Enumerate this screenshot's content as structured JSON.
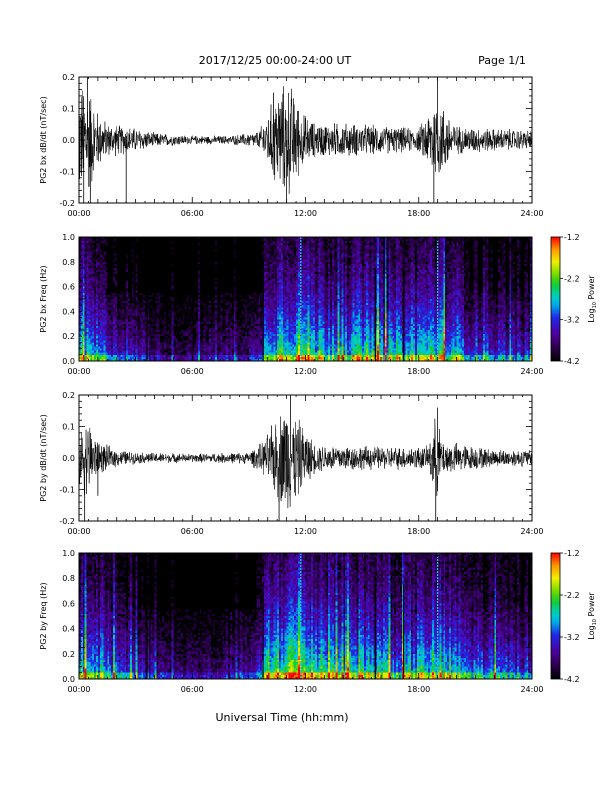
{
  "header": {
    "title": "2017/12/25   00:00-24:00 UT",
    "page": "Page 1/1"
  },
  "footer": {
    "xlabel": "Universal Time (hh:mm)"
  },
  "colorbar": {
    "label": "Log",
    "label_sub": "10",
    "label_rest": " Power",
    "ticks": [
      "-1.2",
      "-2.2",
      "-3.2",
      "-4.2"
    ],
    "tick_values": [
      -1.2,
      -2.2,
      -3.2,
      -4.2
    ],
    "range": [
      -4.2,
      -1.2
    ]
  },
  "chart_data": [
    {
      "type": "line",
      "ylabel": "PG2 bx dB/dt (nT/sec)",
      "xlim": [
        0,
        24
      ],
      "ylim": [
        -0.2,
        0.2
      ],
      "x_ticks": [
        "00:00",
        "06:00",
        "12:00",
        "18:00",
        "24:00"
      ],
      "y_ticks": [
        "0.2",
        "0.1",
        "0.0",
        "-0.1",
        "-0.2"
      ],
      "y_tick_values": [
        0.2,
        0.1,
        0.0,
        -0.1,
        -0.2
      ],
      "envelope": [
        {
          "x": 0.0,
          "a": 0.2
        },
        {
          "x": 0.5,
          "a": 0.2
        },
        {
          "x": 1.0,
          "a": 0.1
        },
        {
          "x": 1.5,
          "a": 0.06
        },
        {
          "x": 2.5,
          "a": 0.05
        },
        {
          "x": 3.2,
          "a": 0.04
        },
        {
          "x": 4.0,
          "a": 0.025
        },
        {
          "x": 6.0,
          "a": 0.015
        },
        {
          "x": 8.0,
          "a": 0.015
        },
        {
          "x": 9.5,
          "a": 0.03
        },
        {
          "x": 9.9,
          "a": 0.08
        },
        {
          "x": 10.5,
          "a": 0.18
        },
        {
          "x": 11.2,
          "a": 0.2
        },
        {
          "x": 11.8,
          "a": 0.1
        },
        {
          "x": 12.5,
          "a": 0.06
        },
        {
          "x": 14.0,
          "a": 0.06
        },
        {
          "x": 16.0,
          "a": 0.05
        },
        {
          "x": 18.0,
          "a": 0.04
        },
        {
          "x": 18.9,
          "a": 0.15
        },
        {
          "x": 19.3,
          "a": 0.12
        },
        {
          "x": 20.0,
          "a": 0.05
        },
        {
          "x": 22.0,
          "a": 0.04
        },
        {
          "x": 24.0,
          "a": 0.035
        }
      ],
      "spikes": [
        {
          "x": 0.25,
          "v": -0.2
        },
        {
          "x": 0.45,
          "v": 0.2
        },
        {
          "x": 0.6,
          "v": -0.2
        },
        {
          "x": 2.5,
          "v": -0.2
        },
        {
          "x": 10.3,
          "v": 0.15
        },
        {
          "x": 11.0,
          "v": -0.2
        },
        {
          "x": 18.8,
          "v": -0.2
        },
        {
          "x": 19.0,
          "v": 0.2
        }
      ]
    },
    {
      "type": "heatmap",
      "ylabel": "PG2 bx Freq (Hz)",
      "xlim": [
        0,
        24
      ],
      "ylim": [
        0.0,
        1.0
      ],
      "x_ticks": [
        "00:00",
        "06:00",
        "12:00",
        "18:00",
        "24:00"
      ],
      "y_ticks": [
        "1.0",
        "0.8",
        "0.6",
        "0.4",
        "0.2",
        "0.0"
      ],
      "y_tick_values": [
        1.0,
        0.8,
        0.6,
        0.4,
        0.2,
        0.0
      ],
      "value_range": [
        -4.2,
        -1.2
      ],
      "activity": [
        {
          "x": 0.0,
          "v": 0.8
        },
        {
          "x": 1.5,
          "v": 0.6
        },
        {
          "x": 3.0,
          "v": 0.45
        },
        {
          "x": 5.0,
          "v": 0.3
        },
        {
          "x": 7.0,
          "v": 0.35
        },
        {
          "x": 9.5,
          "v": 0.4
        },
        {
          "x": 10.0,
          "v": 0.85
        },
        {
          "x": 11.5,
          "v": 0.95
        },
        {
          "x": 13.0,
          "v": 0.8
        },
        {
          "x": 15.0,
          "v": 0.8
        },
        {
          "x": 17.0,
          "v": 0.75
        },
        {
          "x": 19.0,
          "v": 0.85
        },
        {
          "x": 21.0,
          "v": 0.6
        },
        {
          "x": 24.0,
          "v": 0.5
        }
      ],
      "gap_lines_hours": [
        3.6,
        9.75,
        15.7,
        17.2
      ],
      "bright_lines_hours": [
        11.75,
        19.0
      ]
    },
    {
      "type": "line",
      "ylabel": "PG2 by dB/dt (nT/sec)",
      "xlim": [
        0,
        24
      ],
      "ylim": [
        -0.2,
        0.2
      ],
      "x_ticks": [
        "00:00",
        "06:00",
        "12:00",
        "18:00",
        "24:00"
      ],
      "y_ticks": [
        "0.2",
        "0.1",
        "0.0",
        "-0.1",
        "-0.2"
      ],
      "y_tick_values": [
        0.2,
        0.1,
        0.0,
        -0.1,
        -0.2
      ],
      "envelope": [
        {
          "x": 0.0,
          "a": 0.1
        },
        {
          "x": 0.5,
          "a": 0.14
        },
        {
          "x": 1.0,
          "a": 0.06
        },
        {
          "x": 2.0,
          "a": 0.03
        },
        {
          "x": 3.0,
          "a": 0.02
        },
        {
          "x": 6.0,
          "a": 0.015
        },
        {
          "x": 9.0,
          "a": 0.02
        },
        {
          "x": 9.8,
          "a": 0.06
        },
        {
          "x": 10.5,
          "a": 0.15
        },
        {
          "x": 11.0,
          "a": 0.2
        },
        {
          "x": 11.8,
          "a": 0.12
        },
        {
          "x": 12.5,
          "a": 0.05
        },
        {
          "x": 16.0,
          "a": 0.04
        },
        {
          "x": 18.5,
          "a": 0.04
        },
        {
          "x": 18.9,
          "a": 0.15
        },
        {
          "x": 19.3,
          "a": 0.06
        },
        {
          "x": 22.0,
          "a": 0.03
        },
        {
          "x": 24.0,
          "a": 0.03
        }
      ],
      "spikes": [
        {
          "x": 0.3,
          "v": -0.2
        },
        {
          "x": 1.0,
          "v": -0.12
        },
        {
          "x": 11.2,
          "v": 0.2
        },
        {
          "x": 10.6,
          "v": -0.2
        },
        {
          "x": 18.9,
          "v": -0.2
        },
        {
          "x": 19.0,
          "v": 0.16
        }
      ]
    },
    {
      "type": "heatmap",
      "ylabel": "PG2 by Freq (Hz)",
      "xlim": [
        0,
        24
      ],
      "ylim": [
        0.0,
        1.0
      ],
      "x_ticks": [
        "00:00",
        "06:00",
        "12:00",
        "18:00",
        "24:00"
      ],
      "y_ticks": [
        "1.0",
        "0.8",
        "0.6",
        "0.4",
        "0.2",
        "0.0"
      ],
      "y_tick_values": [
        1.0,
        0.8,
        0.6,
        0.4,
        0.2,
        0.0
      ],
      "value_range": [
        -4.2,
        -1.2
      ],
      "activity": [
        {
          "x": 0.0,
          "v": 0.85
        },
        {
          "x": 1.5,
          "v": 0.7
        },
        {
          "x": 3.0,
          "v": 0.5
        },
        {
          "x": 5.0,
          "v": 0.35
        },
        {
          "x": 7.0,
          "v": 0.35
        },
        {
          "x": 9.5,
          "v": 0.45
        },
        {
          "x": 10.0,
          "v": 0.9
        },
        {
          "x": 11.5,
          "v": 1.0
        },
        {
          "x": 13.0,
          "v": 0.85
        },
        {
          "x": 15.0,
          "v": 0.85
        },
        {
          "x": 17.0,
          "v": 0.75
        },
        {
          "x": 19.0,
          "v": 0.85
        },
        {
          "x": 21.0,
          "v": 0.65
        },
        {
          "x": 24.0,
          "v": 0.55
        }
      ],
      "gap_lines_hours": [
        3.6,
        9.75,
        15.7,
        17.2
      ],
      "bright_lines_hours": [
        11.75,
        19.0
      ]
    }
  ]
}
